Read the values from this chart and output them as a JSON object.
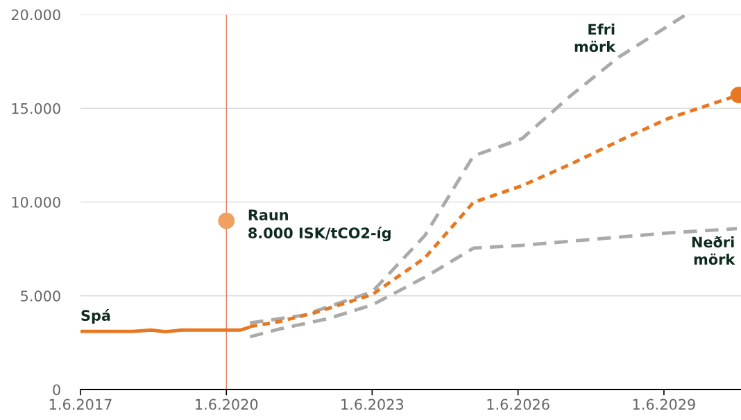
{
  "chart_data": {
    "type": "line",
    "ylim": [
      0,
      20000
    ],
    "yticks": [
      {
        "value": 0,
        "label": "0"
      },
      {
        "value": 5000,
        "label": "5.000"
      },
      {
        "value": 10000,
        "label": "10.000"
      },
      {
        "value": 15000,
        "label": "15.000"
      },
      {
        "value": 20000,
        "label": "20.000"
      }
    ],
    "xlim": [
      "2017-06-01",
      "2031-01-01"
    ],
    "xticks": [
      {
        "value": "2017-06-01",
        "label": "1.6.2017"
      },
      {
        "value": "2020-06-01",
        "label": "1.6.2020"
      },
      {
        "value": "2023-06-01",
        "label": "1.6.2023"
      },
      {
        "value": "2026-06-01",
        "label": "1.6.2026"
      },
      {
        "value": "2029-06-01",
        "label": "1.6.2029"
      }
    ],
    "grid": "y",
    "legend": false,
    "series": [
      {
        "color": "#e87722",
        "line_style": "solid",
        "x": [
          "2017-06-01",
          "2018-07-01",
          "2018-11-15",
          "2019-03-01",
          "2019-07-01",
          "2020-06-01",
          "2020-09-15",
          "2020-11-25"
        ],
        "values": [
          3100,
          3100,
          3170,
          3080,
          3170,
          3170,
          3170,
          3330
        ]
      },
      {
        "color": "#aaaaaa",
        "line_style": "dashed",
        "x": [
          "2020-11-25",
          "2022-01-01",
          "2023-06-01",
          "2024-07-01",
          "2025-07-01",
          "2026-07-01",
          "2027-07-01",
          "2028-07-01",
          "2029-11-15"
        ],
        "values": [
          3550,
          3960,
          5210,
          8210,
          12460,
          13380,
          15670,
          17750,
          20000
        ]
      },
      {
        "color": "#aaaaaa",
        "line_style": "dashed",
        "x": [
          "2020-11-25",
          "2021-07-01",
          "2022-07-01",
          "2023-06-01",
          "2024-07-01",
          "2025-07-01",
          "2026-07-01",
          "2028-01-01",
          "2029-07-01",
          "2030-12-01"
        ],
        "values": [
          2810,
          3220,
          3770,
          4510,
          5990,
          7540,
          7690,
          8020,
          8350,
          8580
        ]
      },
      {
        "color": "#e87722",
        "line_style": "dotted",
        "x": [
          "2020-11-25",
          "2021-07-01",
          "2022-03-15",
          "2023-06-01",
          "2024-07-01",
          "2025-07-01",
          "2026-07-01",
          "2027-07-01",
          "2028-07-01",
          "2029-07-01",
          "2030-12-15"
        ],
        "values": [
          3360,
          3620,
          4070,
          5060,
          7020,
          9980,
          10870,
          12020,
          13270,
          14450,
          15710
        ]
      },
      {
        "type": "scatter",
        "marker": "circle",
        "color": "#e87722",
        "x": [
          "2030-12-15"
        ],
        "values": [
          15710
        ]
      },
      {
        "type": "scatter",
        "marker": "circle",
        "color": "#f0a060",
        "x": [
          "2020-06-01"
        ],
        "values": [
          9000
        ]
      }
    ],
    "ref_lines": [
      {
        "axis": "x",
        "value": "2020-06-01",
        "color": "#e8735a"
      }
    ],
    "annotations": [
      {
        "text": "Raun\n8.000 ISK/tCO2-íg",
        "x": "2020-06-01",
        "y": 9000
      },
      {
        "text": "Spá",
        "x": "2017-06-01",
        "y": 3100
      },
      {
        "text": "Efri\nmörk",
        "x": "2028-07-01",
        "y": 17750
      },
      {
        "text": "Neðri\nmörk",
        "x": "2030-12-01",
        "y": 8580
      }
    ]
  }
}
